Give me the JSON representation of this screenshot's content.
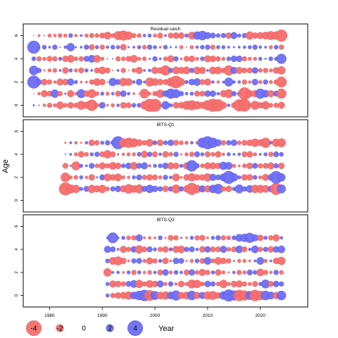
{
  "chart_data": {
    "type": "scatter",
    "subtype": "bubble residual plot",
    "ylabel": "Age",
    "xlabel": "Year",
    "xlim": [
      1975,
      2029
    ],
    "x_ticks": [
      "1980",
      "1990",
      "2000",
      "2010",
      "2020"
    ],
    "colors": {
      "positive": "#6d6df5",
      "negative": "#f56d6d",
      "stroke": "#3a3a9a"
    },
    "legend": {
      "values": [
        -4,
        -2,
        0,
        2,
        4
      ],
      "labels": [
        "-4",
        "-2",
        "0",
        "2",
        "4"
      ],
      "title": "Year"
    },
    "panels": [
      {
        "title": "Residual catch",
        "ylim": [
          -1,
          7
        ],
        "y_ticks": [
          "0",
          "2",
          "4",
          "6"
        ],
        "ages": [
          0,
          1,
          2,
          3,
          4,
          5,
          6
        ],
        "years": [
          1977,
          2024
        ],
        "residuals": [
          [
            0.3,
            0.2,
            -0.5,
            -0.8,
            -0.6,
            -1.2,
            -0.7,
            -1.0,
            -0.8,
            -1.4,
            -1.1,
            -1.8,
            -0.7,
            1.0,
            -0.4,
            -0.6,
            0.5,
            -1.0,
            -0.9,
            0.7,
            0.7,
            -1.3,
            -2.5,
            -3.1,
            -0.5,
            1.3,
            0.6,
            -1.0,
            -1.0,
            -1.4,
            -1.6,
            -1.3,
            -1.1,
            -1.6,
            -2.1,
            -1.9,
            -1.1,
            0.5,
            -0.9,
            -1.9,
            -2.0,
            -0.6,
            -1.4,
            -1.0,
            -1.3,
            -0.7,
            -0.8,
            -1.1
          ],
          [
            0.1,
            -0.5,
            -1.1,
            -0.9,
            1.3,
            -0.8,
            0.3,
            -1.1,
            -0.5,
            1.4,
            -1.0,
            -1.4,
            -0.7,
            0.6,
            -0.6,
            0.5,
            -0.9,
            1.0,
            0.5,
            -0.4,
            -0.2,
            -1.5,
            -0.5,
            -0.8,
            -1.3,
            1.0,
            1.6,
            1.4,
            0.8,
            0.5,
            0.6,
            -0.9,
            -0.9,
            1.0,
            1.0,
            0.5,
            -1.1,
            -1.4,
            0.8,
            0.7,
            -2.0,
            -1.1,
            -1.1,
            1.6,
            1.2,
            -1.1,
            0.9,
            -1.6
          ],
          [
            2.8,
            0.9,
            -1.0,
            -0.8,
            -0.5,
            -1.1,
            -1.0,
            1.1,
            0.6,
            -0.4,
            -0.4,
            -0.8,
            -1.2,
            -1.0,
            -0.2,
            1.3,
            0.9,
            -1.3,
            -1.2,
            0.5,
            1.0,
            0.4,
            -1.4,
            -1.2,
            -1.0,
            -0.9,
            -1.4,
            -2.0,
            -1.2,
            0.6,
            1.0,
            1.2,
            -0.9,
            -1.1,
            0.5,
            -0.5,
            0.4,
            1.4,
            0.5,
            0.5,
            -0.8,
            -0.5,
            1.0,
            -0.6,
            0.8,
            -0.6,
            -0.8,
            -1.7
          ],
          [
            1.5,
            0.8,
            -0.3,
            -0.6,
            -0.7,
            0.4,
            -1.0,
            0.6,
            -0.6,
            -0.9,
            0.6,
            0.4,
            -0.9,
            -1.2,
            -0.9,
            -0.2,
            0.4,
            -0.8,
            -0.2,
            -0.7,
            -1.1,
            0.4,
            0.5,
            -1.1,
            -1.0,
            -1.6,
            0.8,
            -1.2,
            -1.1,
            -1.2,
            0.8,
            -1.2,
            -1.1,
            0.4,
            -1.2,
            -1.2,
            -0.8,
            -1.6,
            1.1,
            -1.1,
            -0.9,
            -0.9,
            1.0,
            -0.7,
            -0.8,
            -0.6,
            -1.0,
            -1.3
          ],
          [
            0.7,
            -0.8,
            -0.6,
            -0.9,
            -0.8,
            0.6,
            -1.0,
            -1.2,
            -0.7,
            -0.8,
            0.9,
            1.2,
            -1.2,
            -0.6,
            0.2,
            0.2,
            -0.8,
            -0.7,
            -0.9,
            -1.2,
            -0.6,
            -0.7,
            0.3,
            0.8,
            0.4,
            -0.7,
            -1.1,
            0.8,
            -0.4,
            -0.9,
            -1.0,
            -0.6,
            0.7,
            -1.1,
            -1.0,
            -0.8,
            -0.6,
            0.7,
            1.0,
            1.0,
            -0.8,
            -0.6,
            -0.6,
            0.6,
            0.3,
            0.7,
            0.6,
            1.6
          ],
          [
            2.6,
            0.3,
            0.7,
            0.4,
            0.8,
            0.2,
            0.5,
            1.3,
            0.3,
            0.4,
            0.8,
            -0.9,
            0.6,
            -0.8,
            0.5,
            0.7,
            0.6,
            -1.0,
            0.3,
            0.4,
            0.6,
            -0.7,
            0.8,
            0.6,
            -0.4,
            0.7,
            0.3,
            0.3,
            -0.6,
            -0.2,
            -0.6,
            0.5,
            0.7,
            0.8,
            -0.8,
            0.6,
            0.6,
            0.4,
            0.3,
            0.4,
            0.5,
            0.6,
            0.8,
            0.5,
            0.4,
            -0.6,
            0.7,
            -0.8
          ],
          [
            0.1,
            -0.4,
            0.2,
            -0.6,
            -0.5,
            -0.7,
            -0.6,
            0.7,
            -0.5,
            0.4,
            -0.6,
            -0.8,
            -0.7,
            -0.9,
            -1.2,
            -0.7,
            -1.4,
            -1.6,
            -1.3,
            -0.8,
            -0.7,
            0.5,
            0.6,
            -0.6,
            -0.9,
            0.4,
            -0.9,
            -1.0,
            -1.0,
            0.6,
            -1.2,
            1.3,
            1.5,
            1.1,
            0.9,
            0.7,
            0.8,
            -1.0,
            1.1,
            0.6,
            0.8,
            -1.3,
            -1.0,
            -1.1,
            -1.2,
            -1.4,
            -1.3,
            -1.9
          ]
        ]
      },
      {
        "title": "IBTS-Q1",
        "ylim": [
          -1,
          7
        ],
        "y_ticks": [
          "0",
          "2",
          "4",
          "6"
        ],
        "ages": [
          1,
          2,
          3,
          4,
          5
        ],
        "years": [
          1983,
          2024
        ],
        "residuals": [
          [
            -2.2,
            -1.4,
            -1.3,
            0.6,
            0.9,
            -1.3,
            -1.1,
            -1.3,
            -0.7,
            0.8,
            1.0,
            -1.1,
            -1.5,
            -1.2,
            -1.4,
            0.9,
            1.3,
            1.0,
            0.8,
            -1.0,
            0.8,
            -1.4,
            0.8,
            -1.1,
            -1.9,
            -1.3,
            1.1,
            -1.1,
            1.3,
            1.6,
            -0.8,
            -1.0,
            0.6,
            1.4,
            0.8,
            1.2,
            -1.3,
            -1.3,
            -1.2,
            1.0,
            -1.9,
            1.4
          ],
          [
            -1.5,
            -0.6,
            -0.7,
            0.6,
            -0.5,
            -1.0,
            0.3,
            0.9,
            -1.2,
            -1.0,
            -1.2,
            -0.6,
            -0.5,
            0.6,
            0.9,
            -0.8,
            -1.0,
            -0.9,
            -0.6,
            0.8,
            0.5,
            -1.2,
            -0.4,
            -1.0,
            -1.3,
            -1.0,
            -1.0,
            -1.3,
            1.1,
            0.9,
            1.2,
            2.1,
            1.3,
            0.6,
            -1.0,
            -1.0,
            0.7,
            -0.6,
            -1.1,
            1.0,
            2.0,
            1.3
          ],
          [
            -0.9,
            0.3,
            -1.4,
            0.6,
            0.4,
            0.9,
            -0.7,
            -1.1,
            -0.8,
            -1.2,
            -1.0,
            0.7,
            1.0,
            -1.2,
            0.9,
            1.1,
            -0.5,
            0.6,
            0.7,
            1.0,
            -1.1,
            -1.0,
            0.6,
            -1.1,
            1.8,
            0.8,
            -0.7,
            -1.1,
            -1.1,
            -1.0,
            1.3,
            1.2,
            -0.6,
            -0.4,
            -0.7,
            -1.0,
            0.9,
            -0.8,
            -0.9,
            -1.1,
            0.8,
            -1.0
          ],
          [
            0.2,
            0.4,
            -0.6,
            -1.0,
            -0.7,
            0.6,
            0.8,
            -0.9,
            -1.3,
            -0.9,
            0.3,
            -0.5,
            -0.6,
            -0.6,
            0.7,
            -1.1,
            0.8,
            -0.9,
            0.5,
            -1.0,
            -0.7,
            0.8,
            -0.3,
            -0.6,
            -0.8,
            0.9,
            0.6,
            -0.9,
            -0.7,
            -1.0,
            -0.5,
            0.6,
            0.4,
            0.5,
            -0.9,
            -1.0,
            -0.6,
            0.4,
            0.6,
            -0.8,
            0.9,
            0.7
          ],
          [
            -0.3,
            0.4,
            -0.5,
            -0.3,
            0.5,
            -1.0,
            -0.8,
            0.6,
            0.8,
            0.7,
            2.2,
            -1.4,
            -1.6,
            -1.4,
            -1.1,
            -0.8,
            -1.2,
            0.7,
            -1.0,
            0.7,
            1.0,
            -0.9,
            -0.7,
            -0.6,
            0.5,
            -0.5,
            1.6,
            2.4,
            1.6,
            1.1,
            -0.8,
            0.8,
            1.0,
            -0.7,
            -0.9,
            -1.0,
            -1.3,
            -1.1,
            -1.6,
            0.5,
            -1.3,
            -1.4
          ]
        ]
      },
      {
        "title": "IBTS-Q3",
        "ylim": [
          -1,
          7
        ],
        "y_ticks": [
          "0",
          "2",
          "4",
          "6"
        ],
        "ages": [
          0,
          1,
          2,
          3,
          4,
          5
        ],
        "years": [
          1991,
          2024
        ],
        "residuals": [
          [
            0.6,
            -0.8,
            -1.0,
            -1.1,
            -1.3,
            1.2,
            1.5,
            1.8,
            -1.7,
            1.4,
            -1.2,
            -1.3,
            1.2,
            1.6,
            -1.1,
            -1.2,
            1.5,
            -1.1,
            1.1,
            -1.3,
            -1.4,
            -1.0,
            1.3,
            1.9,
            1.6,
            -1.8,
            -1.6,
            1.4,
            -1.8,
            -1.5,
            1.5,
            1.2,
            -1.1,
            1.5
          ],
          [
            0.6,
            -1.1,
            -1.0,
            -0.8,
            0.9,
            1.2,
            -1.3,
            -0.8,
            -1.2,
            -1.0,
            1.1,
            -0.6,
            0.8,
            -0.5,
            -1.0,
            -0.6,
            -1.4,
            -1.3,
            -0.7,
            1.0,
            0.8,
            -0.7,
            -1.3,
            -0.6,
            -1.0,
            -1.1,
            -0.8,
            -0.6,
            -0.9,
            0.6,
            1.4,
            -0.9,
            1.0,
            0.8
          ],
          [
            -1.3,
            0.4,
            0.5,
            -0.4,
            0.6,
            -0.8,
            0.6,
            -0.5,
            -0.7,
            0.5,
            -0.9,
            1.0,
            -0.6,
            0.7,
            0.5,
            -0.9,
            1.0,
            -0.7,
            -1.1,
            -0.8,
            0.6,
            -1.0,
            -0.6,
            -0.3,
            0.5,
            -0.8,
            -0.6,
            0.9,
            0.7,
            -1.2,
            -0.8,
            -0.5,
            0.8,
            -0.7
          ],
          [
            0.7,
            -1.2,
            -1.4,
            -1.0,
            -0.4,
            0.8,
            0.9,
            -0.6,
            -1.1,
            -0.8,
            0.6,
            -1.0,
            -0.4,
            1.0,
            0.9,
            -0.3,
            -0.6,
            0.7,
            -0.9,
            1.2,
            -0.7,
            -1.2,
            -1.0,
            -0.8,
            0.3,
            -0.6,
            -0.6,
            -0.4,
            0.4,
            1.2,
            -0.6,
            0.4,
            -1.0,
            -1.3
          ],
          [
            1.1,
            0.9,
            0.4,
            -1.1,
            -0.8,
            1.0,
            -1.3,
            -0.9,
            0.9,
            0.6,
            -0.8,
            -1.0,
            0.6,
            -1.1,
            -1.2,
            0.8,
            0.9,
            0.5,
            -1.0,
            1.0,
            -0.9,
            -0.9,
            1.1,
            -0.7,
            -0.9,
            1.2,
            -0.9,
            0.5,
            1.2,
            -0.8,
            0.8,
            -1.0,
            1.0,
            1.2
          ],
          [
            0.4,
            1.7,
            0.4,
            0.6,
            -0.7,
            -0.8,
            1.1,
            -0.4,
            -0.5,
            -0.4,
            0.7,
            -0.3,
            -0.9,
            -0.8,
            0.3,
            -0.4,
            0.6,
            -0.8,
            -0.9,
            -0.4,
            0.6,
            0.8,
            -0.8,
            -0.7,
            0.7,
            1.2,
            1.3,
            1.6,
            1.1,
            -1.0,
            0.6,
            -0.8,
            -1.1,
            0.5
          ]
        ]
      }
    ]
  }
}
